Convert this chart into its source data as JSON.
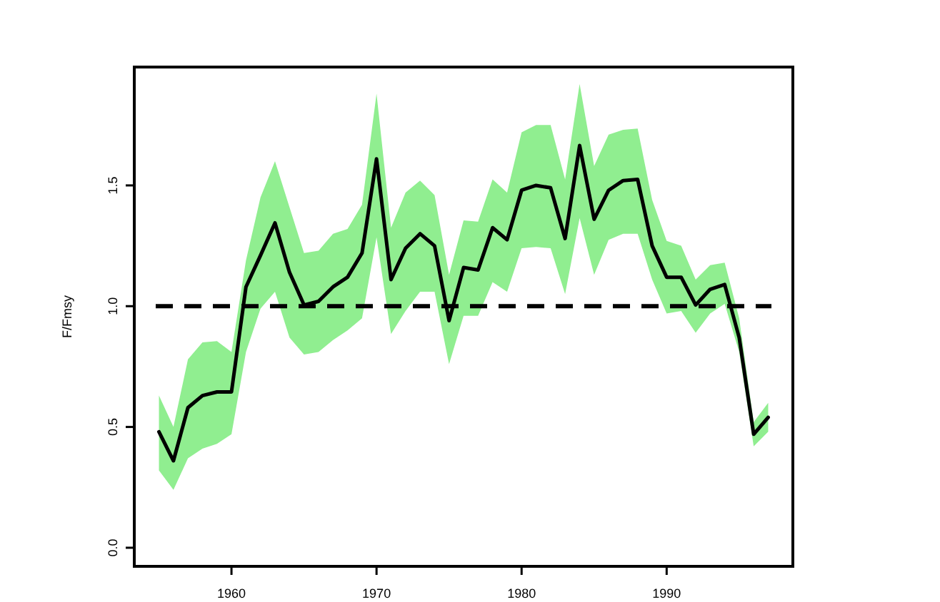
{
  "chart_data": {
    "type": "line",
    "ylabel": "F/Fmsy",
    "x": [
      1955,
      1956,
      1957,
      1958,
      1959,
      1960,
      1961,
      1962,
      1963,
      1964,
      1965,
      1966,
      1967,
      1968,
      1969,
      1970,
      1971,
      1972,
      1973,
      1974,
      1975,
      1976,
      1977,
      1978,
      1979,
      1980,
      1981,
      1982,
      1983,
      1984,
      1985,
      1986,
      1987,
      1988,
      1989,
      1990,
      1991,
      1992,
      1993,
      1994,
      1995,
      1996,
      1997
    ],
    "series": [
      {
        "color": "#000000",
        "values": [
          0.48,
          0.36,
          0.58,
          0.63,
          0.645,
          0.645,
          1.08,
          1.21,
          1.345,
          1.14,
          1.005,
          1.02,
          1.08,
          1.12,
          1.22,
          1.61,
          1.11,
          1.24,
          1.3,
          1.25,
          0.94,
          1.16,
          1.15,
          1.325,
          1.275,
          1.48,
          1.5,
          1.49,
          1.28,
          1.665,
          1.36,
          1.48,
          1.52,
          1.525,
          1.25,
          1.12,
          1.12,
          1.005,
          1.07,
          1.09,
          0.87,
          0.47,
          0.54
        ],
        "upper": [
          0.63,
          0.5,
          0.78,
          0.85,
          0.855,
          0.81,
          1.19,
          1.45,
          1.6,
          1.41,
          1.22,
          1.23,
          1.3,
          1.32,
          1.42,
          1.88,
          1.325,
          1.47,
          1.52,
          1.46,
          1.13,
          1.355,
          1.35,
          1.525,
          1.47,
          1.72,
          1.75,
          1.75,
          1.525,
          1.92,
          1.58,
          1.71,
          1.73,
          1.735,
          1.44,
          1.27,
          1.25,
          1.11,
          1.17,
          1.18,
          0.95,
          0.52,
          0.6
        ],
        "lower": [
          0.32,
          0.24,
          0.37,
          0.41,
          0.43,
          0.47,
          0.81,
          0.99,
          1.06,
          0.87,
          0.8,
          0.81,
          0.86,
          0.9,
          0.95,
          1.285,
          0.885,
          0.98,
          1.06,
          1.06,
          0.76,
          0.96,
          0.96,
          1.1,
          1.06,
          1.24,
          1.245,
          1.24,
          1.05,
          1.365,
          1.13,
          1.275,
          1.3,
          1.3,
          1.11,
          0.97,
          0.98,
          0.89,
          0.97,
          1.01,
          0.81,
          0.42,
          0.48
        ]
      }
    ],
    "xlim": [
      1953.3,
      1998.7
    ],
    "ylim": [
      -0.077,
      1.99
    ],
    "xticks": [
      1960,
      1970,
      1980,
      1990
    ],
    "yticks": [
      {
        "value": 0,
        "label": "0.0"
      },
      {
        "value": 0.5,
        "label": "0.5"
      },
      {
        "value": 1,
        "label": "1.0"
      },
      {
        "value": 1.5,
        "label": "1.5"
      }
    ],
    "ref_lines": [
      {
        "axis": "y",
        "value": 1,
        "color": "#000000",
        "line_style": "dashed"
      }
    ],
    "marker": "none",
    "line_style": "solid"
  }
}
